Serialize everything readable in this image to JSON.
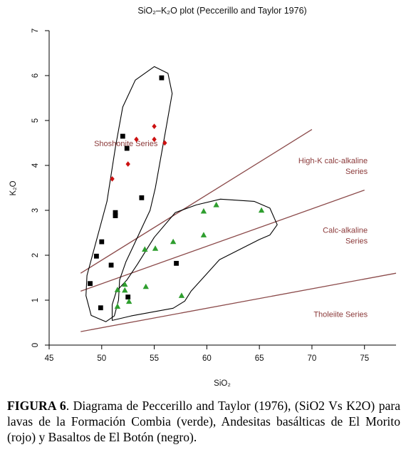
{
  "chart_data": {
    "type": "scatter",
    "title": "SiO₂–K₂O plot (Peccerillo and Taylor 1976)",
    "xlabel": "SiO₂",
    "ylabel": "K₂O",
    "xlim": [
      45,
      78
    ],
    "ylim": [
      0,
      7
    ],
    "xticks": [
      45,
      50,
      55,
      60,
      65,
      70,
      75
    ],
    "yticks": [
      0,
      1,
      2,
      3,
      4,
      5,
      6,
      7
    ],
    "grid": false,
    "colors": {
      "axis": "#000000",
      "boundary_line": "#8b4a4a",
      "series_label": "#8b3a3a",
      "black_series": "#000000",
      "red_series": "#cc1111",
      "green_series": "#2e9e2e",
      "envelope": "#000000"
    },
    "boundary_lines": [
      {
        "label": "Tholeiite Series",
        "x": [
          48,
          78
        ],
        "y": [
          0.3,
          1.6
        ]
      },
      {
        "label": "Calc-alkaline Series",
        "x": [
          48,
          75
        ],
        "y": [
          1.2,
          3.45
        ]
      },
      {
        "label": "High-K calc-alkaline Series",
        "x": [
          48,
          70
        ],
        "y": [
          1.6,
          4.8
        ]
      }
    ],
    "region_labels": [
      {
        "lines": [
          "Shoshonite Series"
        ],
        "x": 52.3,
        "y": 4.43,
        "anchor": "middle"
      },
      {
        "lines": [
          "High-K calc-alkaline",
          "Series"
        ],
        "x": 75.3,
        "y": 4.05,
        "anchor": "end"
      },
      {
        "lines": [
          "Calc-alkaline",
          "Series"
        ],
        "x": 75.3,
        "y": 2.5,
        "anchor": "end"
      },
      {
        "lines": [
          "Tholeiite Series"
        ],
        "x": 75.3,
        "y": 0.63,
        "anchor": "end"
      }
    ],
    "series": [
      {
        "marker": "square",
        "color": "#000000",
        "points": [
          [
            55.7,
            5.95
          ],
          [
            52.0,
            4.65
          ],
          [
            52.4,
            4.38
          ],
          [
            53.8,
            3.28
          ],
          [
            51.3,
            2.95
          ],
          [
            51.3,
            2.88
          ],
          [
            50.0,
            2.3
          ],
          [
            49.5,
            1.98
          ],
          [
            50.9,
            1.78
          ],
          [
            57.1,
            1.82
          ],
          [
            48.9,
            1.37
          ],
          [
            49.9,
            0.83
          ],
          [
            52.5,
            1.07
          ]
        ]
      },
      {
        "marker": "diamond",
        "color": "#cc1111",
        "points": [
          [
            55.0,
            4.87
          ],
          [
            55.0,
            4.58
          ],
          [
            53.3,
            4.58
          ],
          [
            56.0,
            4.5
          ],
          [
            52.5,
            4.03
          ],
          [
            51.0,
            3.7
          ]
        ]
      },
      {
        "marker": "triangle",
        "color": "#2e9e2e",
        "points": [
          [
            60.9,
            3.12
          ],
          [
            59.7,
            2.98
          ],
          [
            65.2,
            3.0
          ],
          [
            59.7,
            2.45
          ],
          [
            56.8,
            2.3
          ],
          [
            55.1,
            2.15
          ],
          [
            54.1,
            2.13
          ],
          [
            54.2,
            1.3
          ],
          [
            57.6,
            1.1
          ],
          [
            52.2,
            1.35
          ],
          [
            51.5,
            1.23
          ],
          [
            52.2,
            1.22
          ],
          [
            52.6,
            0.97
          ],
          [
            51.5,
            0.86
          ]
        ]
      }
    ],
    "envelopes": [
      {
        "name": "black-red-envelope",
        "points": [
          [
            48.6,
            1.55
          ],
          [
            50.5,
            3.2
          ],
          [
            51.3,
            4.4
          ],
          [
            52.0,
            5.3
          ],
          [
            53.2,
            5.9
          ],
          [
            55.0,
            6.2
          ],
          [
            56.3,
            6.05
          ],
          [
            56.7,
            5.6
          ],
          [
            56.1,
            4.8
          ],
          [
            55.1,
            3.5
          ],
          [
            54.6,
            3.0
          ],
          [
            54.0,
            2.7
          ],
          [
            53.0,
            2.2
          ],
          [
            52.3,
            1.85
          ],
          [
            51.7,
            1.45
          ],
          [
            51.6,
            1.0
          ],
          [
            51.2,
            0.65
          ],
          [
            50.4,
            0.52
          ],
          [
            49.0,
            0.66
          ],
          [
            48.5,
            1.1
          ]
        ]
      },
      {
        "name": "green-envelope",
        "points": [
          [
            51.0,
            0.55
          ],
          [
            52.8,
            0.65
          ],
          [
            56.8,
            0.82
          ],
          [
            57.9,
            0.98
          ],
          [
            58.5,
            1.2
          ],
          [
            61.2,
            1.9
          ],
          [
            65.0,
            2.35
          ],
          [
            66.0,
            2.45
          ],
          [
            66.7,
            2.68
          ],
          [
            66.0,
            3.05
          ],
          [
            64.5,
            3.2
          ],
          [
            61.3,
            3.25
          ],
          [
            59.0,
            3.12
          ],
          [
            57.0,
            2.95
          ],
          [
            55.0,
            2.4
          ],
          [
            53.4,
            1.8
          ],
          [
            52.4,
            1.45
          ],
          [
            51.4,
            1.2
          ],
          [
            51.0,
            0.9
          ]
        ]
      }
    ]
  },
  "caption": {
    "label": "FIGURA 6",
    "text": ". Diagrama de Peccerillo and Taylor (1976), (SiO2 Vs K2O) para lavas de la Formación Combia (verde), Andesitas basálticas de El Morito (rojo) y Basaltos de El Botón (negro)."
  }
}
